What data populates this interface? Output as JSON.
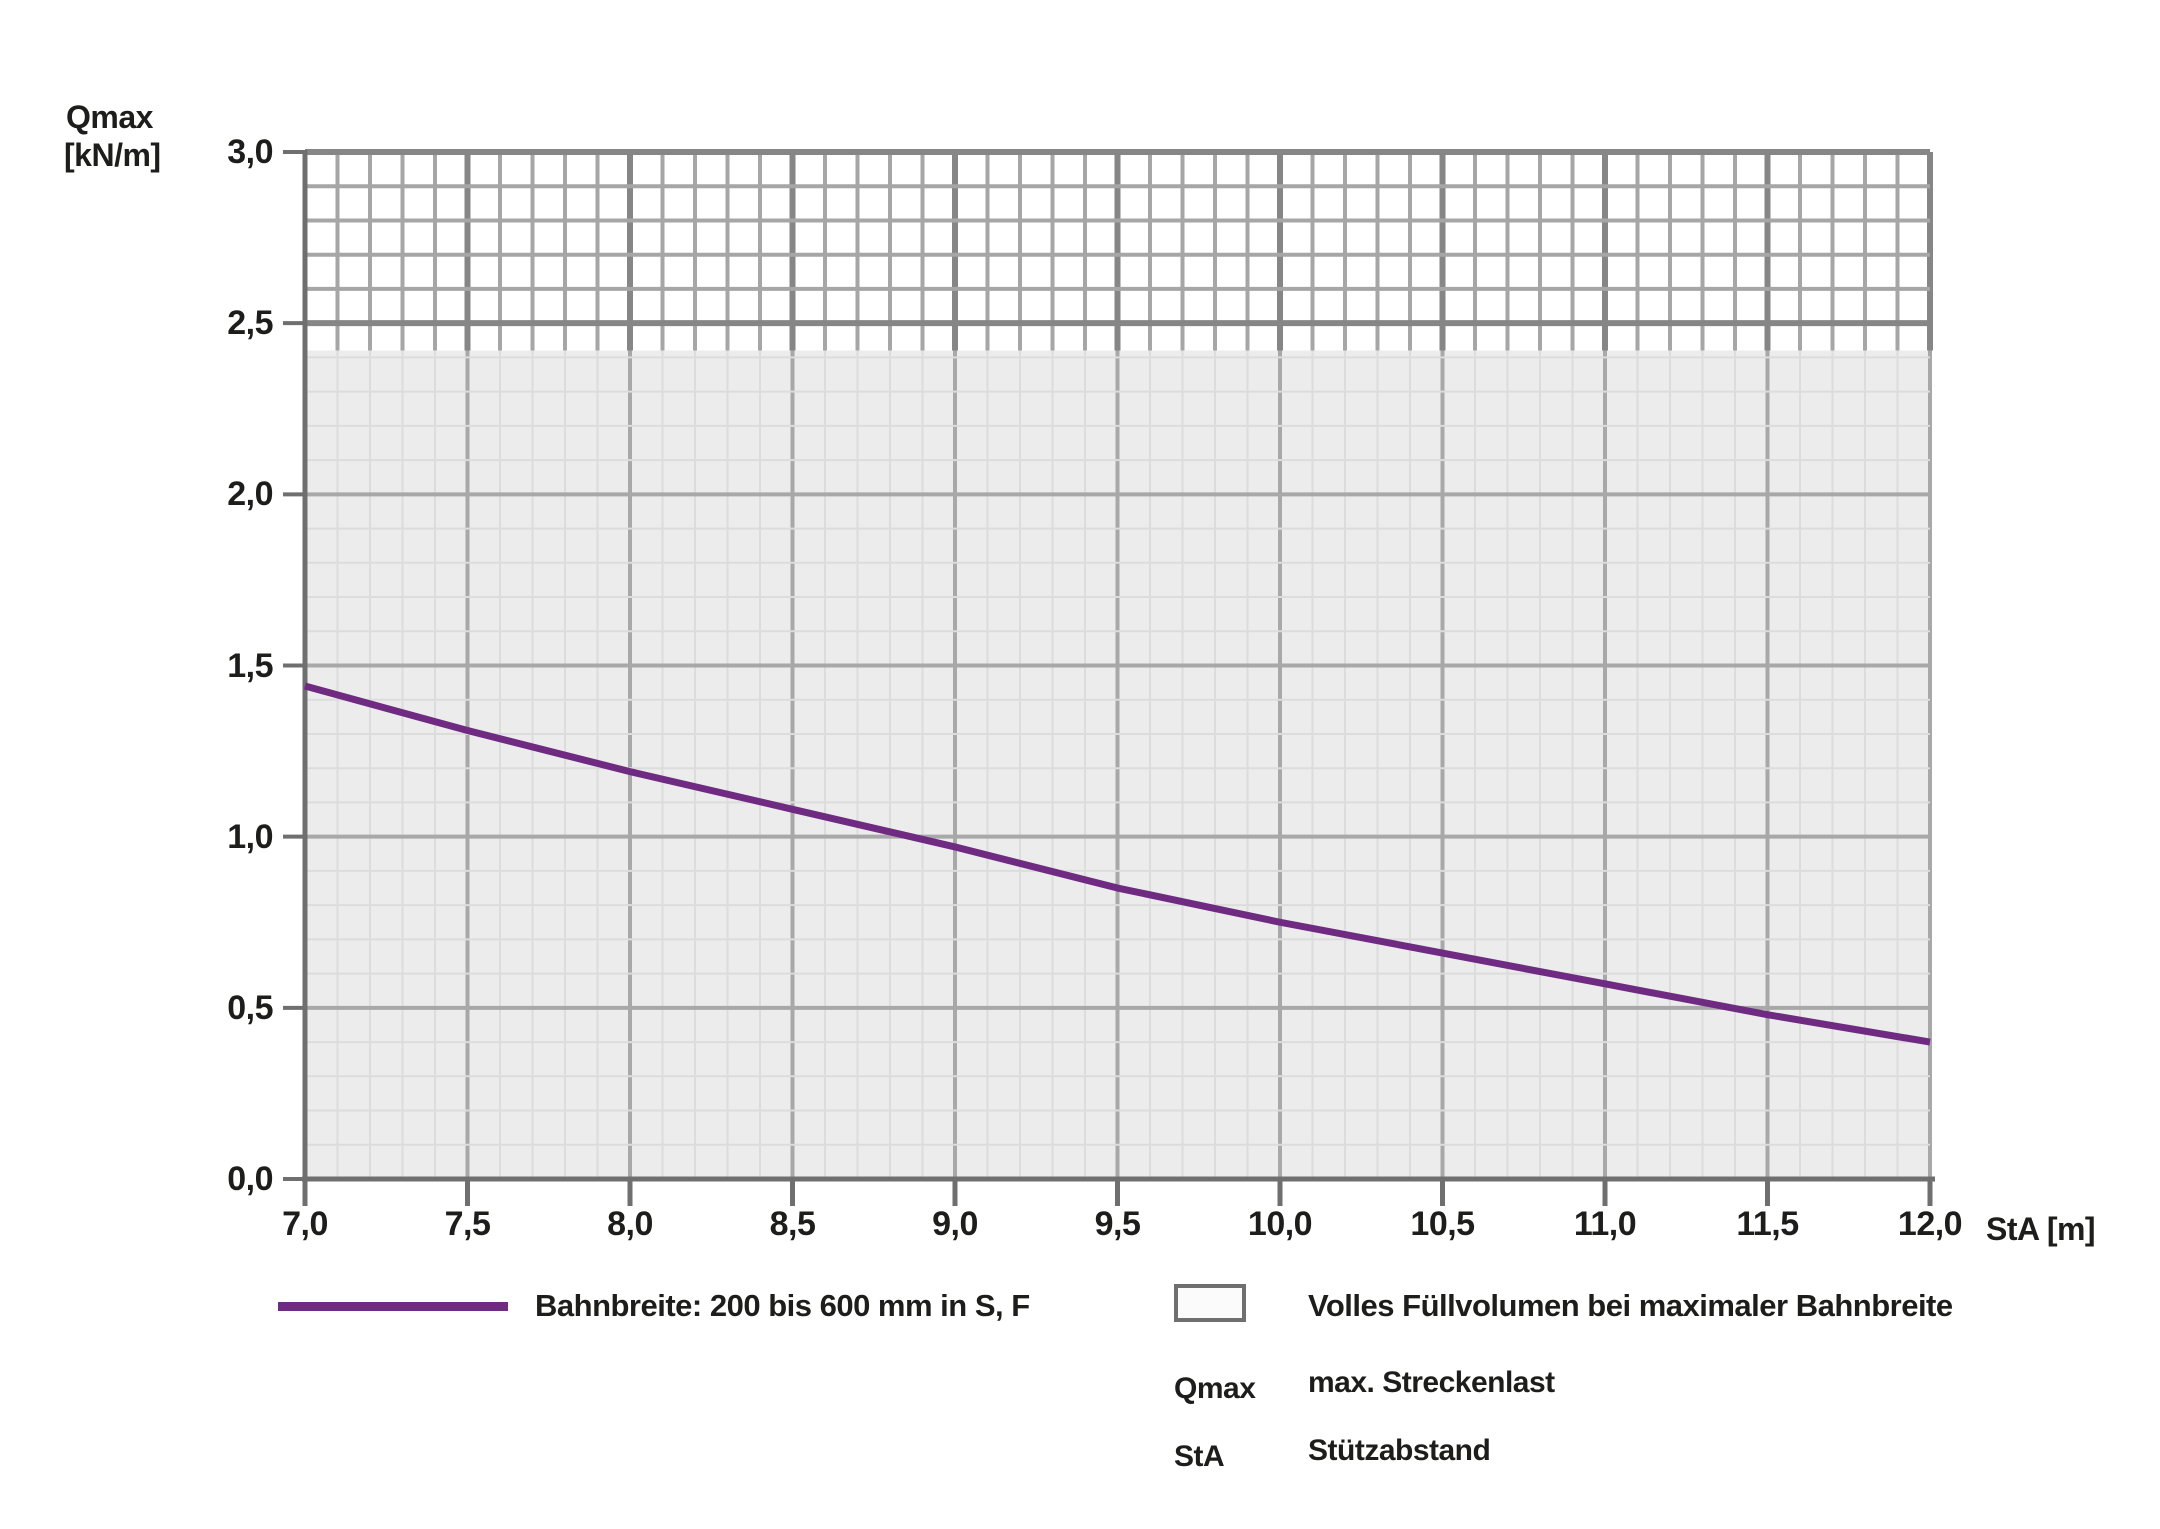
{
  "page": {
    "background": "#ffffff"
  },
  "chart_data": {
    "type": "line",
    "title": "",
    "x_axis": {
      "title": "StA [m]",
      "min": 7.0,
      "max": 12.0,
      "major_step": 0.5,
      "minor_step": 0.1,
      "tick_values": [
        7.0,
        7.5,
        8.0,
        8.5,
        9.0,
        9.5,
        10.0,
        10.5,
        11.0,
        11.5,
        12.0
      ],
      "tick_labels": [
        "7,0",
        "7,5",
        "8,0",
        "8,5",
        "9,0",
        "9,5",
        "10,0",
        "10,5",
        "11,0",
        "11,5",
        "12,0"
      ]
    },
    "y_axis": {
      "title_line1": "Qmax",
      "title_line2": "[kN/m]",
      "min": 0.0,
      "max": 3.0,
      "major_step": 0.5,
      "minor_step": 0.1,
      "tick_values": [
        0.0,
        0.5,
        1.0,
        1.5,
        2.0,
        2.5,
        3.0
      ],
      "tick_labels": [
        "0,0",
        "0,5",
        "1,0",
        "1,5",
        "2,0",
        "2,5",
        "3,0"
      ]
    },
    "series": [
      {
        "name": "Bahnbreite: 200 bis 600 mm in S, F",
        "color": "#6e2b81",
        "x": [
          7.0,
          7.5,
          8.0,
          8.5,
          9.0,
          9.5,
          10.0,
          10.5,
          11.0,
          11.5,
          12.0
        ],
        "values": [
          1.44,
          1.31,
          1.19,
          1.08,
          0.97,
          0.85,
          0.75,
          0.66,
          0.57,
          0.48,
          0.4
        ]
      }
    ],
    "regions": {
      "filled": {
        "label": "Volles Füllvolumen bei maximaler Bahnbreite",
        "from": 0.0,
        "to": 2.42,
        "fill": "#ececec"
      },
      "hatched": {
        "style": "crosshatch",
        "from": 2.42,
        "to": 3.0
      }
    },
    "grid": {
      "minor_color": "#dcdcdc",
      "major_color": "#a8a8a8",
      "hatch_minor_color": "#a6a6a6",
      "hatch_major_color": "#868686",
      "axis_color": "#6f6f6f"
    },
    "legend_position": "bottom"
  },
  "legend": {
    "series_label": "Bahnbreite: 200 bis 600 mm in S, F",
    "region_label": "Volles Füllvolumen bei maximaler Bahnbreite",
    "definitions": [
      {
        "symbol": "Qmax",
        "meaning": "max. Streckenlast"
      },
      {
        "symbol": "StA",
        "meaning": "Stützabstand"
      }
    ]
  }
}
